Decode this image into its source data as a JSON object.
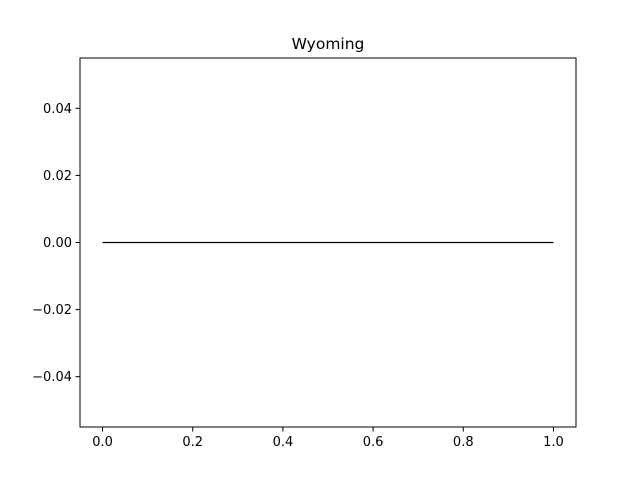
{
  "chart_data": {
    "type": "line",
    "title": "Wyoming",
    "xlabel": "",
    "ylabel": "",
    "xlim": [
      -0.05,
      1.05
    ],
    "ylim": [
      -0.055,
      0.055
    ],
    "x_ticks": [
      0.0,
      0.2,
      0.4,
      0.6,
      0.8,
      1.0
    ],
    "x_tick_labels": [
      "0.0",
      "0.2",
      "0.4",
      "0.6",
      "0.8",
      "1.0"
    ],
    "y_ticks": [
      0.04,
      0.02,
      0.0,
      -0.02,
      -0.04
    ],
    "y_tick_labels": [
      "0.04",
      "0.02",
      "0.00",
      "−0.02",
      "−0.04"
    ],
    "grid": false,
    "legend": "none",
    "series": [
      {
        "x": [
          0.0,
          1.0
        ],
        "y": [
          0.0,
          0.0
        ],
        "color": "#000000"
      }
    ]
  }
}
